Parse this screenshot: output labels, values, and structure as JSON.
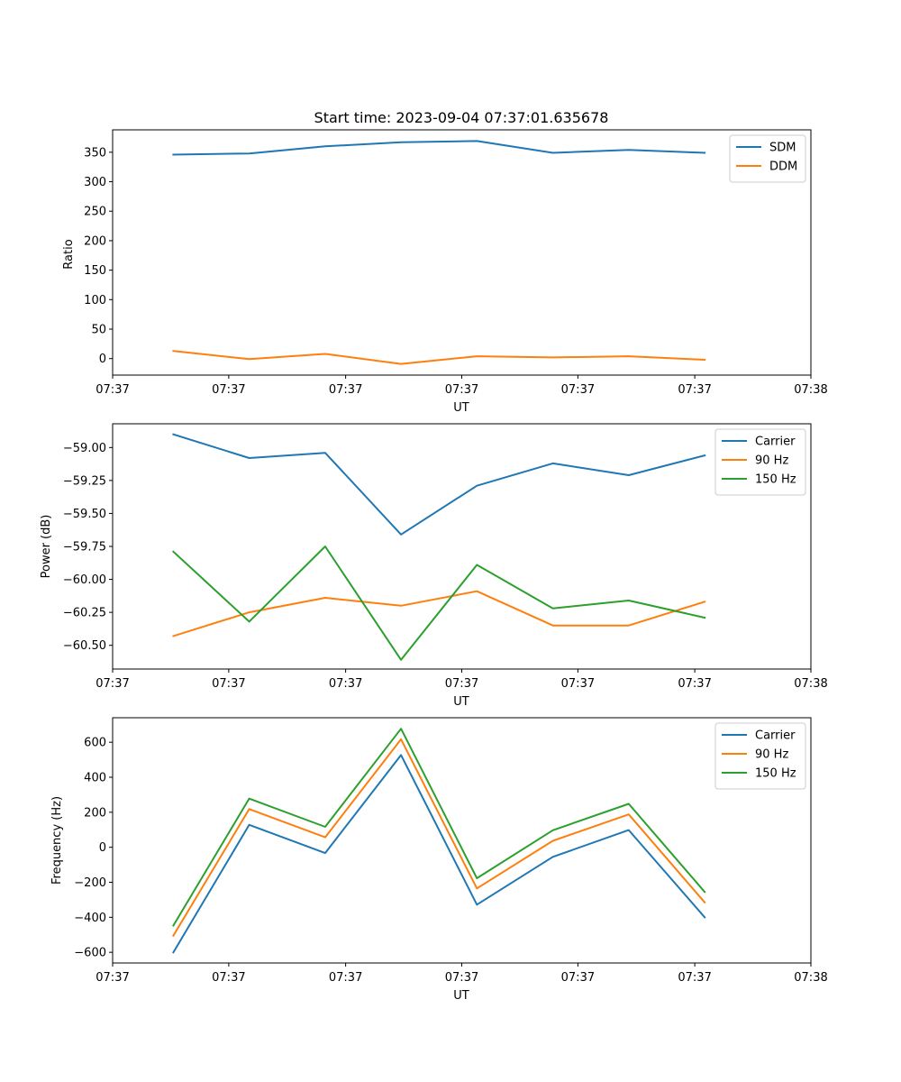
{
  "chart_data": [
    {
      "type": "line",
      "title": "Start time: 2023-09-04 07:37:01.635678",
      "xlabel": "UT",
      "ylabel": "Ratio",
      "x": [
        1,
        2,
        3,
        4,
        5,
        6,
        7,
        8
      ],
      "xlim": [
        0.2,
        9.4
      ],
      "x_ticks": [
        0.2,
        1.73,
        3.27,
        4.8,
        6.33,
        7.87,
        9.4
      ],
      "x_tick_labels": [
        "07:37",
        "07:37",
        "07:37",
        "07:37",
        "07:37",
        "07:37",
        "07:38"
      ],
      "ylim": [
        -28,
        388
      ],
      "y_ticks": [
        0,
        50,
        100,
        150,
        200,
        250,
        300,
        350
      ],
      "y_tick_labels": [
        "0",
        "50",
        "100",
        "150",
        "200",
        "250",
        "300",
        "350"
      ],
      "legend_position": "top-right",
      "series": [
        {
          "name": "SDM",
          "color": "#1f77b4",
          "values": [
            346,
            348,
            360,
            367,
            369,
            349,
            354,
            349
          ]
        },
        {
          "name": "DDM",
          "color": "#ff7f0e",
          "values": [
            13,
            -1,
            8,
            -9,
            4,
            2,
            4,
            -2
          ]
        }
      ]
    },
    {
      "type": "line",
      "title": "",
      "xlabel": "UT",
      "ylabel": "Power (dB)",
      "x": [
        1,
        2,
        3,
        4,
        5,
        6,
        7,
        8
      ],
      "xlim": [
        0.2,
        9.4
      ],
      "x_ticks": [
        0.2,
        1.73,
        3.27,
        4.8,
        6.33,
        7.87,
        9.4
      ],
      "x_tick_labels": [
        "07:37",
        "07:37",
        "07:37",
        "07:37",
        "07:37",
        "07:37",
        "07:38"
      ],
      "ylim": [
        -60.68,
        -58.82
      ],
      "y_ticks": [
        -60.5,
        -60.25,
        -60.0,
        -59.75,
        -59.5,
        -59.25,
        -59.0
      ],
      "y_tick_labels": [
        "−60.50",
        "−60.25",
        "−60.00",
        "−59.75",
        "−59.50",
        "−59.25",
        "−59.00"
      ],
      "legend_position": "top-right",
      "series": [
        {
          "name": "Carrier",
          "color": "#1f77b4",
          "values": [
            -58.9,
            -59.08,
            -59.04,
            -59.66,
            -59.29,
            -59.12,
            -59.21,
            -59.06
          ]
        },
        {
          "name": "90 Hz",
          "color": "#ff7f0e",
          "values": [
            -60.43,
            -60.25,
            -60.14,
            -60.2,
            -60.09,
            -60.35,
            -60.35,
            -60.17
          ]
        },
        {
          "name": "150 Hz",
          "color": "#2ca02c",
          "values": [
            -59.79,
            -60.32,
            -59.75,
            -60.61,
            -59.89,
            -60.22,
            -60.16,
            -60.29
          ]
        }
      ]
    },
    {
      "type": "line",
      "title": "",
      "xlabel": "UT",
      "ylabel": "Frequency (Hz)",
      "x": [
        1,
        2,
        3,
        4,
        5,
        6,
        7,
        8
      ],
      "xlim": [
        0.2,
        9.4
      ],
      "x_ticks": [
        0.2,
        1.73,
        3.27,
        4.8,
        6.33,
        7.87,
        9.4
      ],
      "x_tick_labels": [
        "07:37",
        "07:37",
        "07:37",
        "07:37",
        "07:37",
        "07:37",
        "07:38"
      ],
      "ylim": [
        -661,
        740
      ],
      "y_ticks": [
        -600,
        -400,
        -200,
        0,
        200,
        400,
        600
      ],
      "y_tick_labels": [
        "−600",
        "−400",
        "−200",
        "0",
        "200",
        "400",
        "600"
      ],
      "legend_position": "top-right",
      "series": [
        {
          "name": "Carrier",
          "color": "#1f77b4",
          "values": [
            -600,
            128,
            -33,
            527,
            -328,
            -55,
            98,
            -400
          ]
        },
        {
          "name": "90 Hz",
          "color": "#ff7f0e",
          "values": [
            -505,
            218,
            57,
            617,
            -235,
            37,
            188,
            -315
          ]
        },
        {
          "name": "150 Hz",
          "color": "#2ca02c",
          "values": [
            -447,
            278,
            117,
            677,
            -177,
            97,
            248,
            -255
          ]
        }
      ]
    }
  ]
}
